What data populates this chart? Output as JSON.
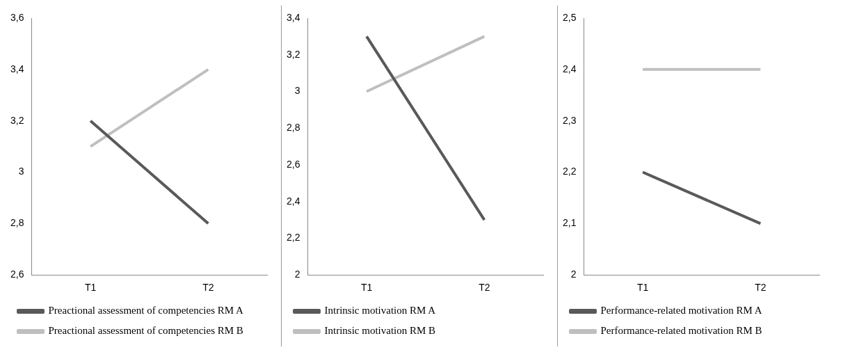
{
  "chart_data": [
    {
      "type": "line",
      "categories": [
        "T1",
        "T2"
      ],
      "ylim": [
        2.6,
        3.6
      ],
      "yticks": [
        {
          "value": 2.6,
          "label": "2,6"
        },
        {
          "value": 2.8,
          "label": "2,8"
        },
        {
          "value": 3,
          "label": "3"
        },
        {
          "value": 3.2,
          "label": "3,2"
        },
        {
          "value": 3.4,
          "label": "3,4"
        },
        {
          "value": 3.6,
          "label": "3,6"
        }
      ],
      "grid": false,
      "legend": "bottom",
      "marker": "none",
      "series": [
        {
          "name": "Preactional assessment of competencies RM A",
          "color": "#595959",
          "values": [
            3.2,
            2.8
          ]
        },
        {
          "name": "Preactional assessment of competencies RM B",
          "color": "#bfbfbf",
          "values": [
            3.1,
            3.4
          ]
        }
      ]
    },
    {
      "type": "line",
      "categories": [
        "T1",
        "T2"
      ],
      "ylim": [
        2,
        3.4
      ],
      "yticks": [
        {
          "value": 2,
          "label": "2"
        },
        {
          "value": 2.2,
          "label": "2,2"
        },
        {
          "value": 2.4,
          "label": "2,4"
        },
        {
          "value": 2.6,
          "label": "2,6"
        },
        {
          "value": 2.8,
          "label": "2,8"
        },
        {
          "value": 3,
          "label": "3"
        },
        {
          "value": 3.2,
          "label": "3,2"
        },
        {
          "value": 3.4,
          "label": "3,4"
        }
      ],
      "grid": false,
      "legend": "bottom",
      "marker": "none",
      "series": [
        {
          "name": "Intrinsic motivation RM A",
          "color": "#595959",
          "values": [
            3.3,
            2.3
          ]
        },
        {
          "name": "Intrinsic motivation RM B",
          "color": "#bfbfbf",
          "values": [
            3.0,
            3.3
          ]
        }
      ]
    },
    {
      "type": "line",
      "categories": [
        "T1",
        "T2"
      ],
      "ylim": [
        2,
        2.5
      ],
      "yticks": [
        {
          "value": 2,
          "label": "2"
        },
        {
          "value": 2.1,
          "label": "2,1"
        },
        {
          "value": 2.2,
          "label": "2,2"
        },
        {
          "value": 2.3,
          "label": "2,3"
        },
        {
          "value": 2.4,
          "label": "2,4"
        },
        {
          "value": 2.5,
          "label": "2,5"
        }
      ],
      "grid": false,
      "legend": "bottom",
      "marker": "none",
      "series": [
        {
          "name": "Performance-related motivation RM A",
          "color": "#595959",
          "values": [
            2.2,
            2.1
          ]
        },
        {
          "name": "Performance-related motivation RM B",
          "color": "#bfbfbf",
          "values": [
            2.4,
            2.4
          ]
        }
      ]
    }
  ]
}
